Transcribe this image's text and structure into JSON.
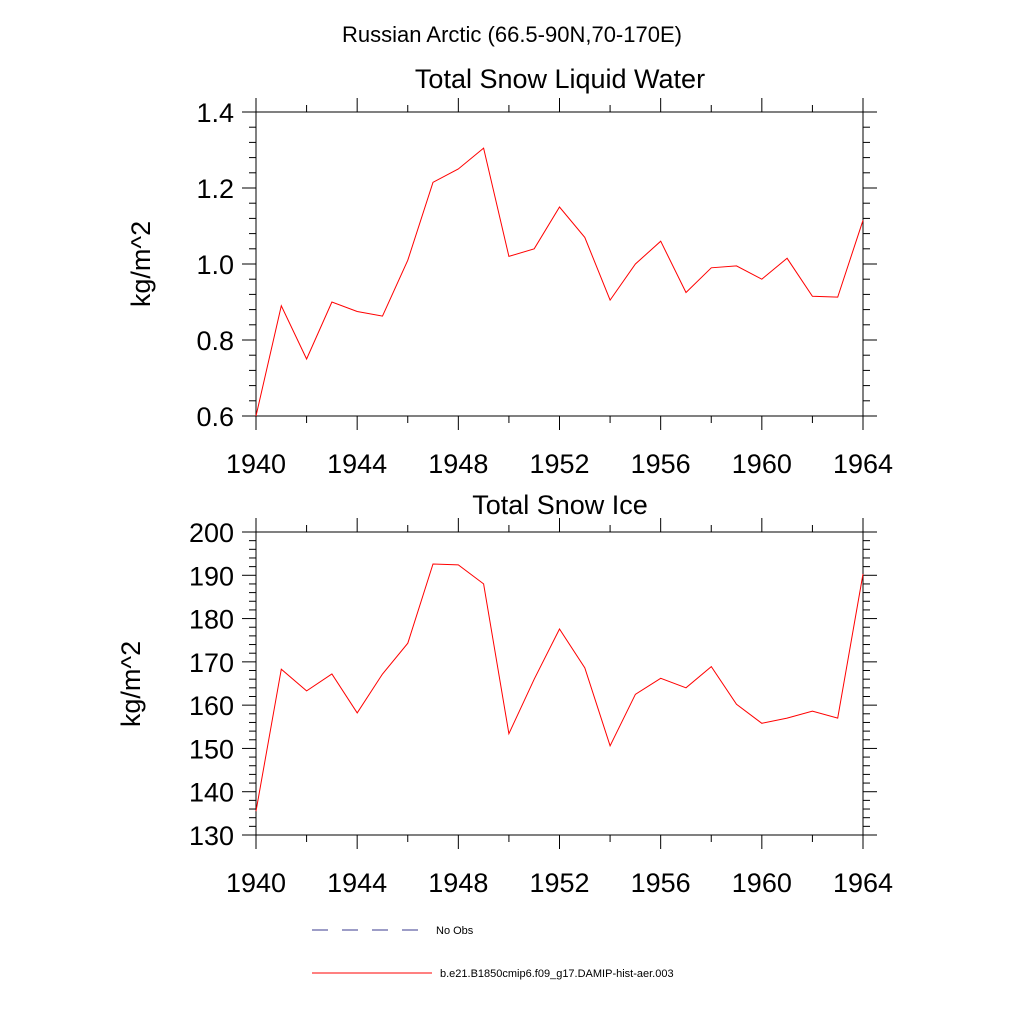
{
  "figure": {
    "title": "Russian Arctic (66.5-90N,70-170E)"
  },
  "legend": {
    "items": [
      {
        "label": "No Obs",
        "style": "dashed",
        "color": "#3b3b8f"
      },
      {
        "label": "b.e21.B1850cmip6.f09_g17.DAMIP-hist-aer.003",
        "style": "solid",
        "color": "#ff0000"
      }
    ]
  },
  "chart_data": [
    {
      "type": "line",
      "title": "Total Snow Liquid Water",
      "xlabel": "",
      "ylabel": "kg/m^2",
      "xlim": [
        1940,
        1964
      ],
      "ylim": [
        0.6,
        1.4
      ],
      "xticks": [
        "1940",
        "1944",
        "1948",
        "1952",
        "1956",
        "1960",
        "1964"
      ],
      "yticks": [
        "0.6",
        "0.8",
        "1.0",
        "1.2",
        "1.4"
      ],
      "series": [
        {
          "name": "b.e21.B1850cmip6.f09_g17.DAMIP-hist-aer.003",
          "color": "#ff0000",
          "x": [
            1940,
            1941,
            1942,
            1943,
            1944,
            1945,
            1946,
            1947,
            1948,
            1949,
            1950,
            1951,
            1952,
            1953,
            1954,
            1955,
            1956,
            1957,
            1958,
            1959,
            1960,
            1961,
            1962,
            1963,
            1964
          ],
          "y": [
            0.6,
            0.89,
            0.75,
            0.9,
            0.875,
            0.863,
            1.01,
            1.215,
            1.25,
            1.305,
            1.02,
            1.04,
            1.15,
            1.07,
            0.905,
            1.0,
            1.06,
            0.925,
            0.99,
            0.995,
            0.96,
            1.015,
            0.915,
            0.913,
            1.115
          ]
        }
      ]
    },
    {
      "type": "line",
      "title": "Total Snow Ice",
      "xlabel": "",
      "ylabel": "kg/m^2",
      "xlim": [
        1940,
        1964
      ],
      "ylim": [
        130,
        200
      ],
      "xticks": [
        "1940",
        "1944",
        "1948",
        "1952",
        "1956",
        "1960",
        "1964"
      ],
      "yticks": [
        "130",
        "140",
        "150",
        "160",
        "170",
        "180",
        "190",
        "200"
      ],
      "series": [
        {
          "name": "b.e21.B1850cmip6.f09_g17.DAMIP-hist-aer.003",
          "color": "#ff0000",
          "x": [
            1940,
            1941,
            1942,
            1943,
            1944,
            1945,
            1946,
            1947,
            1948,
            1949,
            1950,
            1951,
            1952,
            1953,
            1954,
            1955,
            1956,
            1957,
            1958,
            1959,
            1960,
            1961,
            1962,
            1963,
            1964
          ],
          "y": [
            135.5,
            168.3,
            163.3,
            167.2,
            158.2,
            167.2,
            174.3,
            192.6,
            192.4,
            188.0,
            153.4,
            166.0,
            177.6,
            168.6,
            150.6,
            162.5,
            166.2,
            164.0,
            168.9,
            160.2,
            155.8,
            157.0,
            158.6,
            157.0,
            190.3
          ]
        }
      ]
    }
  ]
}
